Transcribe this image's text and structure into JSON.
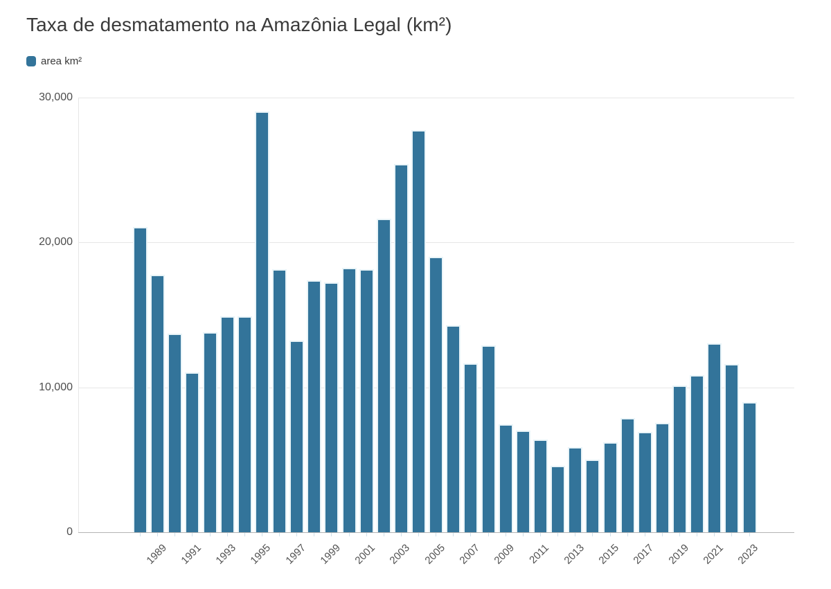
{
  "header": {
    "title": "Taxa de desmatamento na Amazônia Legal (km²)"
  },
  "legend": {
    "label": "area km²"
  },
  "colors": {
    "bar": "#33749a",
    "bar_stroke": "#e9f4f8",
    "gridline": "#e6e6e6",
    "baseline": "#b3b3b3",
    "tick": "#cfe0ea",
    "title_text": "#3a3a3a",
    "axis_text": "#4d4d4d"
  },
  "chart_data": {
    "type": "bar",
    "title": "Taxa de desmatamento na Amazônia Legal (km²)",
    "legend_entries": [
      "area km²"
    ],
    "categories": [
      "1988",
      "1989",
      "1990",
      "1991",
      "1992",
      "1993",
      "1994",
      "1995",
      "1996",
      "1997",
      "1998",
      "1999",
      "2000",
      "2001",
      "2002",
      "2003",
      "2004",
      "2005",
      "2006",
      "2007",
      "2008",
      "2009",
      "2010",
      "2011",
      "2012",
      "2013",
      "2014",
      "2015",
      "2016",
      "2017",
      "2018",
      "2019",
      "2020",
      "2021",
      "2022",
      "2023"
    ],
    "values": [
      21050,
      17770,
      13730,
      11030,
      13786,
      14896,
      14896,
      29059,
      18161,
      13227,
      17383,
      17259,
      18226,
      18165,
      21651,
      25396,
      27772,
      19014,
      14286,
      11651,
      12911,
      7464,
      7000,
      6418,
      4571,
      5891,
      5012,
      6207,
      7893,
      6947,
      7536,
      10129,
      10851,
      13038,
      11594,
      9001
    ],
    "x_tick_labels": [
      "1989",
      "1991",
      "1993",
      "1995",
      "1997",
      "1999",
      "2001",
      "2003",
      "2005",
      "2007",
      "2009",
      "2011",
      "2013",
      "2015",
      "2017",
      "2019",
      "2021",
      "2023"
    ],
    "y_ticks": [
      0,
      10000,
      20000,
      30000
    ],
    "y_tick_labels": [
      "0",
      "10,000",
      "20,000",
      "30,000"
    ],
    "xlabel": "",
    "ylabel": "",
    "ylim": [
      0,
      30000
    ],
    "grid": true,
    "legend_position": "top-left",
    "bar_color": "#33749a"
  }
}
